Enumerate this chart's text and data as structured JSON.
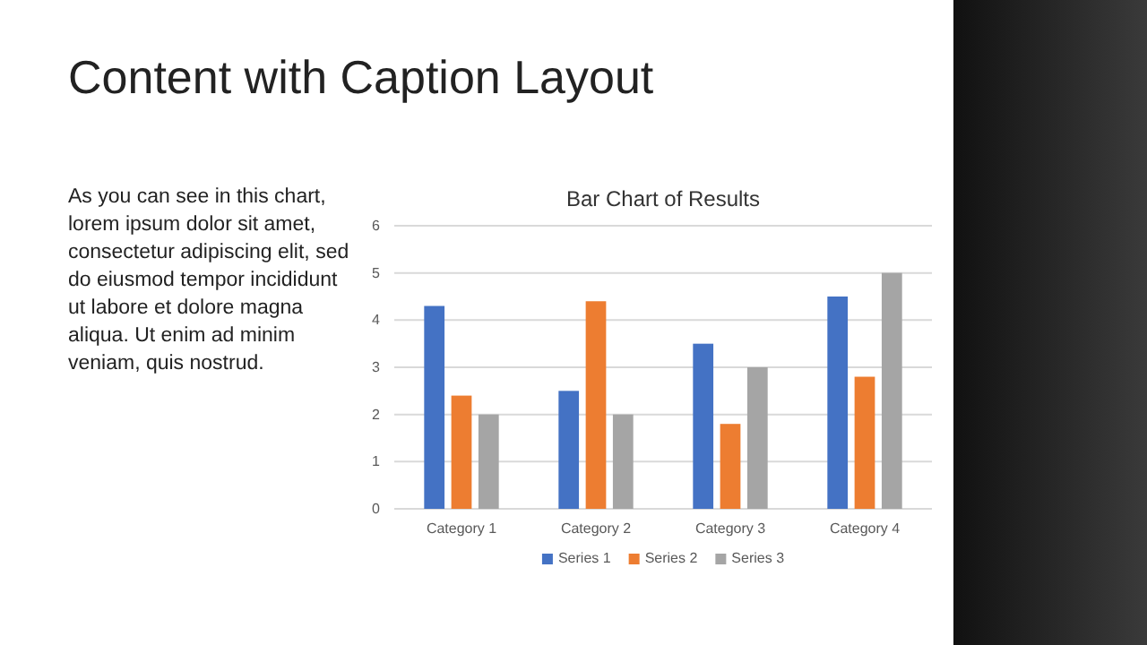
{
  "chart_data": {
    "type": "bar",
    "title": "Bar Chart of Results",
    "annotations": [
      "Content with Caption Layout",
      "As you can see in this chart, lorem ipsum dolor sit amet, consectetur adipiscing elit, sed do eiusmod tempor incididunt ut labore et dolore magna aliqua. Ut enim ad minim veniam, quis nostrud."
    ],
    "categories": [
      "Category 1",
      "Category 2",
      "Category 3",
      "Category 4"
    ],
    "series": [
      {
        "name": "Series 1",
        "color": "#4472c4",
        "values": [
          4.3,
          2.5,
          3.5,
          4.5
        ]
      },
      {
        "name": "Series 2",
        "color": "#ed7d31",
        "values": [
          2.4,
          4.4,
          1.8,
          2.8
        ]
      },
      {
        "name": "Series 3",
        "color": "#a5a5a5",
        "values": [
          2,
          2,
          3,
          5
        ]
      }
    ],
    "ylim": [
      0,
      6
    ],
    "yticks": [
      0,
      1,
      2,
      3,
      4,
      5,
      6
    ],
    "grid": "y",
    "legend": "bottom"
  }
}
